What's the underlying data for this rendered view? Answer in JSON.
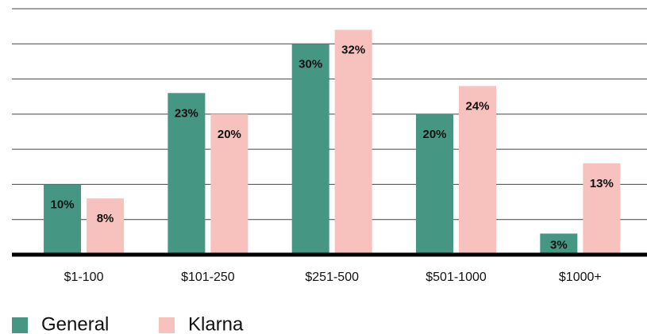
{
  "chart_data": {
    "type": "bar",
    "categories": [
      "$1-100",
      "$101-250",
      "$251-500",
      "$501-1000",
      "$1000+"
    ],
    "series": [
      {
        "name": "General",
        "color": "#459783",
        "values": [
          10,
          23,
          30,
          20,
          3
        ],
        "value_labels": [
          "10%",
          "23%",
          "30%",
          "20%",
          "3%"
        ]
      },
      {
        "name": "Klarna",
        "color": "#f7c1bd",
        "values": [
          8,
          20,
          32,
          24,
          13
        ],
        "value_labels": [
          "8%",
          "20%",
          "32%",
          "24%",
          "13%"
        ]
      }
    ],
    "ylim": [
      0,
      35
    ],
    "yticks": [
      0,
      5,
      10,
      15,
      20,
      25,
      30,
      35
    ],
    "grid": true
  }
}
